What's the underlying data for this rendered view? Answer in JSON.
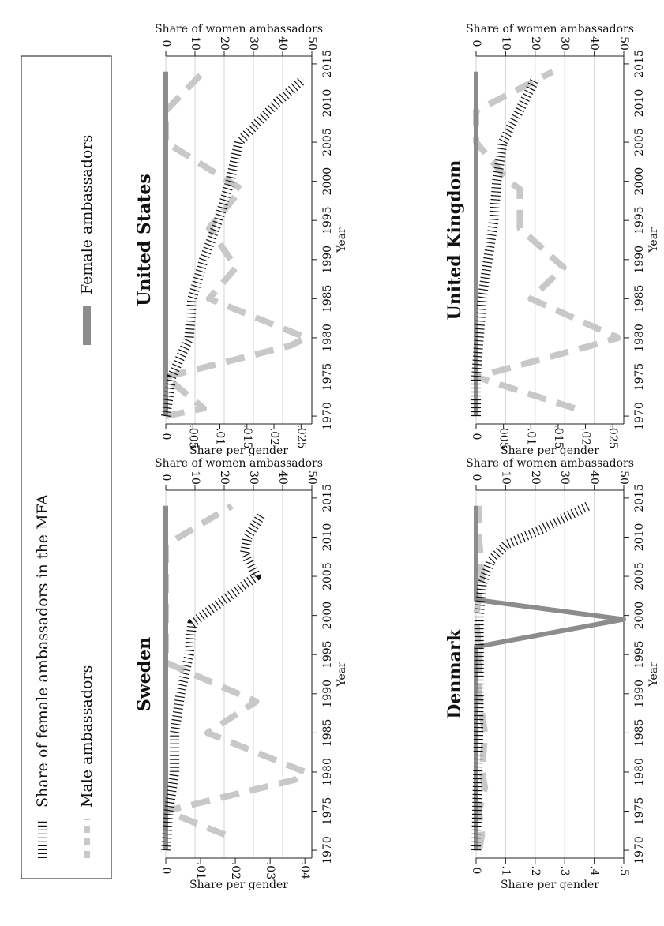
{
  "legend": {
    "items": [
      {
        "label": "Male ambassadors",
        "style": "dashed",
        "color": "#c8c8c8"
      },
      {
        "label": "Female ambassadors",
        "style": "solid",
        "color": "#8c8c8c"
      },
      {
        "label": "Share of female ambassadors in the MFA",
        "style": "dotted",
        "color": "#111111"
      }
    ],
    "placement": "bottom"
  },
  "chart_data": [
    {
      "type": "line",
      "title": "Denmark",
      "xlabel": "Year",
      "ylabel": "Share per gender",
      "ylabel_right": "Share of women ambassadors",
      "xlim": [
        1969,
        2016
      ],
      "xticks": [
        1970,
        1975,
        1980,
        1985,
        1990,
        1995,
        2000,
        2005,
        2010,
        2015
      ],
      "ylim": [
        0,
        0.5
      ],
      "yticks": [
        0,
        0.1,
        0.2,
        0.3,
        0.4,
        0.5
      ],
      "ytick_labels": [
        "0",
        ".1",
        ".2",
        ".3",
        ".4",
        ".5"
      ],
      "y2lim": [
        0,
        50
      ],
      "y2ticks": [
        0,
        10,
        20,
        30,
        40,
        50
      ],
      "grid": true,
      "series": [
        {
          "name": "Male ambassadors",
          "axis": "left",
          "style": "dashed",
          "x": [
            1970,
            1972,
            1975,
            1978,
            1980,
            1985,
            1990,
            1995,
            2000,
            2005,
            2010,
            2014
          ],
          "y": [
            0.01,
            0.02,
            0.01,
            0.03,
            0.02,
            0.03,
            0.01,
            0.01,
            0.0,
            0.02,
            0.01,
            0.01
          ]
        },
        {
          "name": "Female ambassadors",
          "axis": "left",
          "style": "solid",
          "x": [
            1970,
            1975,
            1980,
            1985,
            1990,
            1996,
            1999.5,
            2002,
            2005,
            2010,
            2014
          ],
          "y": [
            0.0,
            0.0,
            0.0,
            0.0,
            0.0,
            0.0,
            0.5,
            0.0,
            0.0,
            0.0,
            0.0
          ]
        },
        {
          "name": "Share of female ambassadors in the MFA",
          "axis": "right",
          "style": "dotted",
          "x": [
            1970,
            1975,
            1980,
            1985,
            1990,
            1995,
            2000,
            2004,
            2007,
            2009,
            2011,
            2014
          ],
          "y": [
            0,
            0.3,
            0.6,
            0.8,
            1,
            1,
            1,
            2,
            5,
            10,
            22,
            38
          ]
        }
      ]
    },
    {
      "type": "line",
      "title": "Sweden",
      "xlabel": "Year",
      "ylabel": "Share per gender",
      "ylabel_right": "Share of women ambassadors",
      "xlim": [
        1969,
        2016
      ],
      "xticks": [
        1970,
        1975,
        1980,
        1985,
        1990,
        1995,
        2000,
        2005,
        2010,
        2015
      ],
      "ylim": [
        0,
        0.042
      ],
      "yticks": [
        0,
        0.01,
        0.02,
        0.03,
        0.04
      ],
      "ytick_labels": [
        "0",
        ".01",
        ".02",
        ".03",
        ".04"
      ],
      "y2lim": [
        0,
        50
      ],
      "y2ticks": [
        0,
        10,
        20,
        30,
        40,
        50
      ],
      "grid": true,
      "series": [
        {
          "name": "Male ambassadors",
          "axis": "left",
          "style": "dashed",
          "x": [
            1972,
            1975,
            1979,
            1980,
            1985,
            1989,
            1994,
            2000,
            2005,
            2009,
            2014
          ],
          "y": [
            0.017,
            0.0,
            0.037,
            0.04,
            0.012,
            0.026,
            0.0,
            0.0,
            0.0,
            0.0,
            0.019
          ]
        },
        {
          "name": "Female ambassadors",
          "axis": "left",
          "style": "solid",
          "x": [
            1970,
            1975,
            1980,
            1985,
            1990,
            1995,
            2000,
            2005,
            2010,
            2014
          ],
          "y": [
            0,
            0,
            0,
            0,
            0,
            0,
            0,
            0,
            0,
            0
          ]
        },
        {
          "name": "Share of female ambassadors in the MFA",
          "axis": "right",
          "style": "dotted",
          "x": [
            1970,
            1975,
            1980,
            1985,
            1990,
            1995,
            1999,
            2005,
            2008,
            2010,
            2013
          ],
          "y": [
            0,
            1,
            3,
            3,
            5,
            8,
            9,
            31,
            27,
            28,
            33
          ]
        }
      ]
    },
    {
      "type": "line",
      "title": "United Kingdom",
      "xlabel": "Year",
      "ylabel": "Share per gender",
      "ylabel_right": "Share of women ambassadors",
      "xlim": [
        1969,
        2016
      ],
      "xticks": [
        1970,
        1975,
        1980,
        1985,
        1990,
        1995,
        2000,
        2005,
        2010,
        2015
      ],
      "ylim": [
        0,
        0.027
      ],
      "yticks": [
        0,
        0.005,
        0.01,
        0.015,
        0.02,
        0.025
      ],
      "ytick_labels": [
        "0",
        ".005",
        ".01",
        ".015",
        ".02",
        ".025"
      ],
      "y2lim": [
        0,
        50
      ],
      "y2ticks": [
        0,
        10,
        20,
        30,
        40,
        50
      ],
      "grid": true,
      "series": [
        {
          "name": "Male ambassadors",
          "axis": "left",
          "style": "dashed",
          "x": [
            1971,
            1975,
            1979,
            1980,
            1985,
            1989,
            1994,
            1999,
            2000,
            2005,
            2009,
            2014
          ],
          "y": [
            0.018,
            0.0,
            0.021,
            0.026,
            0.01,
            0.016,
            0.008,
            0.008,
            0.006,
            0.0,
            0.0,
            0.014
          ]
        },
        {
          "name": "Female ambassadors",
          "axis": "left",
          "style": "solid",
          "x": [
            1970,
            1975,
            1980,
            1985,
            1990,
            1995,
            2000,
            2005,
            2010,
            2014
          ],
          "y": [
            0,
            0,
            0,
            0,
            0,
            0,
            0,
            0,
            0,
            0
          ]
        },
        {
          "name": "Share of female ambassadors in the MFA",
          "axis": "right",
          "style": "dotted",
          "x": [
            1970,
            1975,
            1980,
            1985,
            1990,
            1995,
            2000,
            2005,
            2010,
            2013
          ],
          "y": [
            0,
            0,
            1,
            2,
            4,
            6,
            7,
            9,
            16,
            20
          ]
        }
      ]
    },
    {
      "type": "line",
      "title": "United States",
      "xlabel": "Year",
      "ylabel": "Share per gender",
      "ylabel_right": "Share of women ambassadors",
      "xlim": [
        1969,
        2016
      ],
      "xticks": [
        1970,
        1975,
        1980,
        1985,
        1990,
        1995,
        2000,
        2005,
        2010,
        2015
      ],
      "ylim": [
        0,
        0.027
      ],
      "yticks": [
        0,
        0.005,
        0.01,
        0.015,
        0.02,
        0.025
      ],
      "ytick_labels": [
        "0",
        ".005",
        ".01",
        ".015",
        ".02",
        ".025"
      ],
      "y2lim": [
        0,
        50
      ],
      "y2ticks": [
        0,
        10,
        20,
        30,
        40,
        50
      ],
      "grid": true,
      "series": [
        {
          "name": "Male ambassadors",
          "axis": "left",
          "style": "dashed",
          "x": [
            1970,
            1971,
            1975,
            1979,
            1980,
            1985,
            1989,
            1994,
            1999,
            2005,
            2009,
            2014
          ],
          "y": [
            0.0,
            0.007,
            0.0,
            0.023,
            0.026,
            0.008,
            0.013,
            0.008,
            0.014,
            0.0,
            0.0,
            0.007
          ]
        },
        {
          "name": "Female ambassadors",
          "axis": "left",
          "style": "solid",
          "x": [
            1970,
            1975,
            1980,
            1985,
            1990,
            1995,
            2000,
            2005,
            2010,
            2014
          ],
          "y": [
            0,
            0,
            0,
            0,
            0,
            0,
            0,
            0,
            0,
            0
          ]
        },
        {
          "name": "Share of female ambassadors in the MFA",
          "axis": "right",
          "style": "dotted",
          "x": [
            1970,
            1975,
            1980,
            1985,
            1990,
            1995,
            2000,
            2005,
            2010,
            2013
          ],
          "y": [
            0,
            2,
            8,
            9,
            13,
            18,
            22,
            25,
            38,
            47
          ]
        }
      ]
    }
  ]
}
